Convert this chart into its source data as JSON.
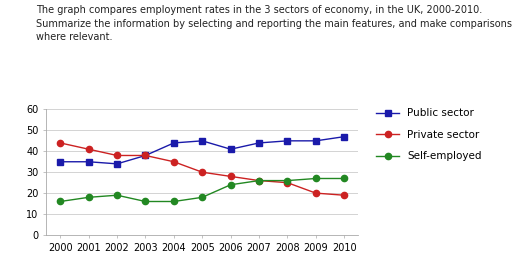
{
  "title_line1": "The graph compares employment rates in the 3 sectors of economy, in the UK, 2000-2010.",
  "title_line2": "Summarize the information by selecting and reporting the main features, and make comparisons",
  "title_line3": "where relevant.",
  "years": [
    2000,
    2001,
    2002,
    2003,
    2004,
    2005,
    2006,
    2007,
    2008,
    2009,
    2010
  ],
  "public_sector": [
    35,
    35,
    34,
    38,
    44,
    45,
    41,
    44,
    45,
    45,
    47
  ],
  "private_sector": [
    44,
    41,
    38,
    38,
    35,
    30,
    28,
    26,
    25,
    20,
    19
  ],
  "self_employed": [
    16,
    18,
    19,
    16,
    16,
    18,
    24,
    26,
    26,
    27,
    27
  ],
  "public_color": "#1a1aaa",
  "private_color": "#cc2222",
  "self_color": "#228822",
  "ylim": [
    0,
    60
  ],
  "yticks": [
    0,
    10,
    20,
    30,
    40,
    50,
    60
  ],
  "legend_labels": [
    "Public sector",
    "Private sector",
    "Self-employed"
  ],
  "title_fontsize": 7.0,
  "tick_fontsize": 7.0,
  "legend_fontsize": 7.5,
  "background_color": "#ffffff",
  "grid_color": "#cccccc",
  "spine_color": "#aaaaaa"
}
